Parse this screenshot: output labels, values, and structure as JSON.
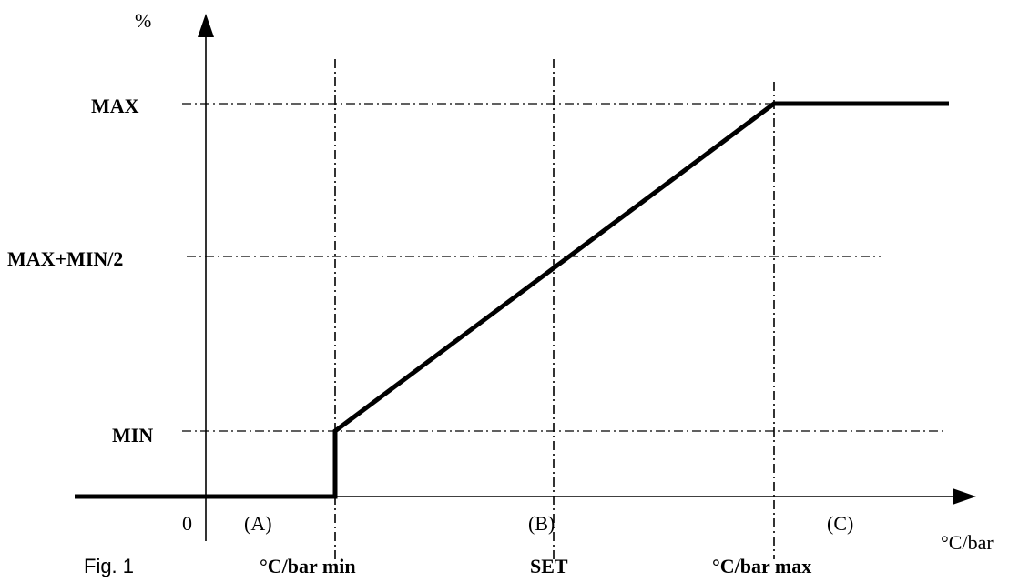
{
  "figure_caption": "Fig. 1",
  "y_axis_unit": "%",
  "x_axis_unit": "°C/bar",
  "origin_label": "0",
  "y_levels": {
    "max": "MAX",
    "mid": "MAX+MIN/2",
    "min": "MIN"
  },
  "x_marks": {
    "min": "°C/bar min",
    "set": "SET",
    "max": "°C/bar max"
  },
  "regions": {
    "a": "(A)",
    "b": "(B)",
    "c": "(C)"
  }
}
